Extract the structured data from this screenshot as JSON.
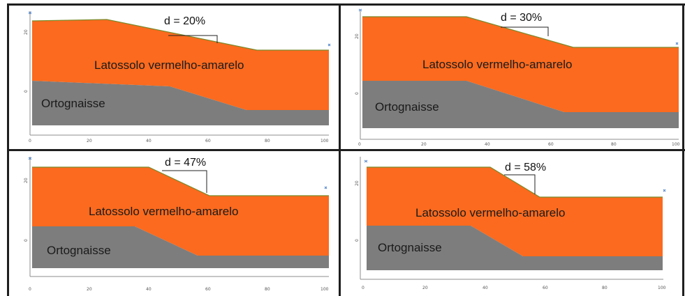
{
  "colors": {
    "soil": "#fb6a1e",
    "rock": "#7d7d7d",
    "surface_line": "#7a8a2a",
    "axis": "#8c8c8c",
    "marker": "#4a7fc8",
    "border": "#1e1e1e"
  },
  "legend": {
    "soil_label": "Latossolo vermelho-amarelo",
    "rock_label": "Ortognaisse"
  },
  "panels": [
    {
      "id": "p1",
      "slope_label": "d = 20%",
      "x_ticks": [
        "0",
        "20",
        "40",
        "60",
        "80",
        "100"
      ],
      "y_ticks": [
        "20",
        "0"
      ]
    },
    {
      "id": "p2",
      "slope_label": "d = 30%",
      "x_ticks": [
        "0",
        "20",
        "40",
        "60",
        "80",
        "100"
      ],
      "y_ticks": [
        "20",
        "0"
      ]
    },
    {
      "id": "p3",
      "slope_label": "d = 47%",
      "x_ticks": [
        "0",
        "20",
        "40",
        "60",
        "80",
        "100"
      ],
      "y_ticks": [
        "20",
        "0"
      ]
    },
    {
      "id": "p4",
      "slope_label": "d = 58%",
      "x_ticks": [
        "0",
        "20",
        "40",
        "60",
        "80",
        "100"
      ],
      "y_ticks": [
        "20",
        "0"
      ]
    }
  ]
}
